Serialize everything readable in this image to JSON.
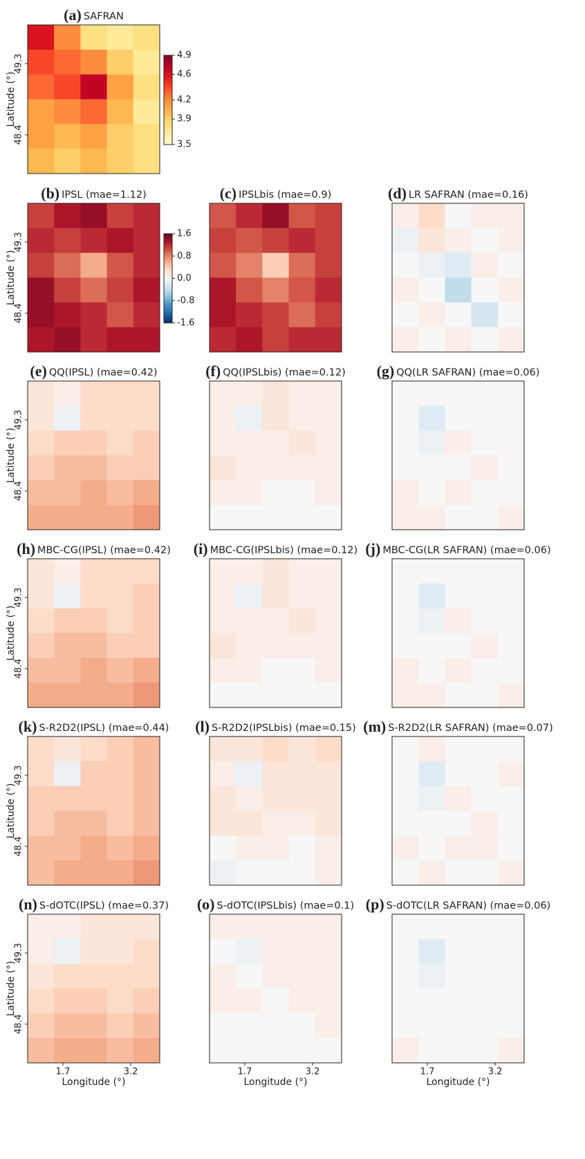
{
  "chart_data": [
    {
      "type": "heatmap",
      "label": "(a)",
      "title": "SAFRAN",
      "ylabel": "Latitude (°)",
      "xlim": [
        0.92,
        3.84
      ],
      "ylim": [
        47.91,
        49.79
      ],
      "yticks": [
        49.3,
        48.4
      ],
      "zlim": [
        3.5,
        4.9
      ],
      "colormap": [
        "#ffffcc",
        "#ffeda0",
        "#fed976",
        "#feb24c",
        "#fd8d3c",
        "#fc4e2a",
        "#e31a1c",
        "#bd0026",
        "#800026"
      ],
      "colorbar": {
        "ticks": [
          4.9,
          4.6,
          4.2,
          3.9,
          3.5
        ]
      },
      "z": [
        [
          4.6,
          4.2,
          3.8,
          3.7,
          3.8
        ],
        [
          4.4,
          4.3,
          4.2,
          3.9,
          3.7
        ],
        [
          4.3,
          4.4,
          4.7,
          4.1,
          3.8
        ],
        [
          4.1,
          4.2,
          4.3,
          4.0,
          3.7
        ],
        [
          4.1,
          4.0,
          4.1,
          3.9,
          3.8
        ],
        [
          4.0,
          3.9,
          4.0,
          3.9,
          3.8
        ]
      ]
    },
    {
      "type": "heatmap",
      "label": "(b)",
      "title": "IPSL (mae=1.12)",
      "ylabel": "Latitude (°)",
      "xlim": [
        0.92,
        3.84
      ],
      "ylim": [
        47.91,
        49.79
      ],
      "yticks": [
        49.3,
        48.4
      ],
      "zlim": [
        -1.6,
        1.6
      ],
      "colormap": [
        "#053061",
        "#2166ac",
        "#4393c3",
        "#92c5de",
        "#d1e5f0",
        "#f7f7f7",
        "#fddbc7",
        "#f4a582",
        "#d6604d",
        "#b2182b",
        "#67001f"
      ],
      "colorbar": {
        "ticks": [
          1.6,
          0.8,
          {
            "value": 0,
            "label": "0.0"
          },
          -0.8,
          -1.6
        ]
      },
      "z": [
        [
          1.1,
          1.3,
          1.4,
          1.1,
          1.2
        ],
        [
          1.2,
          1.1,
          1.2,
          1.3,
          1.2
        ],
        [
          1.1,
          0.9,
          0.6,
          1.0,
          1.2
        ],
        [
          1.4,
          1.1,
          0.9,
          1.1,
          1.3
        ],
        [
          1.4,
          1.3,
          1.2,
          1.0,
          1.2
        ],
        [
          1.3,
          1.4,
          1.2,
          1.3,
          1.3
        ]
      ]
    },
    {
      "type": "heatmap",
      "label": "(c)",
      "title": "IPSLbis (mae=0.9)",
      "xlim": [
        0.92,
        3.84
      ],
      "ylim": [
        47.91,
        49.79
      ],
      "zlim": [
        -1.6,
        1.6
      ],
      "colormap": [
        "#053061",
        "#2166ac",
        "#4393c3",
        "#92c5de",
        "#d1e5f0",
        "#f7f7f7",
        "#fddbc7",
        "#f4a582",
        "#d6604d",
        "#b2182b",
        "#67001f"
      ],
      "z": [
        [
          1.0,
          1.2,
          1.4,
          1.0,
          1.1
        ],
        [
          1.1,
          1.0,
          1.1,
          1.2,
          1.1
        ],
        [
          1.0,
          0.8,
          0.4,
          0.9,
          1.1
        ],
        [
          1.3,
          1.0,
          0.8,
          1.0,
          1.2
        ],
        [
          1.3,
          1.2,
          1.1,
          0.9,
          1.1
        ],
        [
          1.2,
          1.3,
          1.1,
          1.2,
          1.2
        ]
      ]
    },
    {
      "type": "heatmap",
      "label": "(d)",
      "title": "LR SAFRAN (mae=0.16)",
      "xlim": [
        0.92,
        3.84
      ],
      "ylim": [
        47.91,
        49.79
      ],
      "zlim": [
        -1.6,
        1.6
      ],
      "colormap": [
        "#053061",
        "#2166ac",
        "#4393c3",
        "#92c5de",
        "#d1e5f0",
        "#f7f7f7",
        "#fddbc7",
        "#f4a582",
        "#d6604d",
        "#b2182b",
        "#67001f"
      ],
      "z": [
        [
          0.1,
          0.3,
          0.0,
          0.1,
          0.1
        ],
        [
          -0.1,
          0.2,
          0.1,
          0.0,
          0.1
        ],
        [
          0.0,
          -0.1,
          -0.2,
          0.1,
          0.0
        ],
        [
          0.1,
          0.0,
          -0.4,
          0.0,
          0.1
        ],
        [
          0.0,
          0.1,
          0.0,
          -0.3,
          0.0
        ],
        [
          0.1,
          0.0,
          0.1,
          0.0,
          0.1
        ]
      ]
    },
    {
      "type": "heatmap",
      "label": "(e)",
      "title": "QQ(IPSL) (mae=0.42)",
      "ylabel": "Latitude (°)",
      "xlim": [
        0.92,
        3.84
      ],
      "ylim": [
        47.91,
        49.79
      ],
      "yticks": [
        49.3,
        48.4
      ],
      "zlim": [
        -1.6,
        1.6
      ],
      "colormap": [
        "#053061",
        "#2166ac",
        "#4393c3",
        "#92c5de",
        "#d1e5f0",
        "#f7f7f7",
        "#fddbc7",
        "#f4a582",
        "#d6604d",
        "#b2182b",
        "#67001f"
      ],
      "z": [
        [
          0.2,
          0.1,
          0.3,
          0.3,
          0.3
        ],
        [
          0.2,
          -0.1,
          0.3,
          0.3,
          0.3
        ],
        [
          0.3,
          0.4,
          0.4,
          0.3,
          0.4
        ],
        [
          0.4,
          0.5,
          0.5,
          0.4,
          0.4
        ],
        [
          0.5,
          0.5,
          0.6,
          0.5,
          0.6
        ],
        [
          0.6,
          0.6,
          0.6,
          0.6,
          0.7
        ]
      ]
    },
    {
      "type": "heatmap",
      "label": "(f)",
      "title": "QQ(IPSLbis) (mae=0.12)",
      "xlim": [
        0.92,
        3.84
      ],
      "ylim": [
        47.91,
        49.79
      ],
      "zlim": [
        -1.6,
        1.6
      ],
      "colormap": [
        "#053061",
        "#2166ac",
        "#4393c3",
        "#92c5de",
        "#d1e5f0",
        "#f7f7f7",
        "#fddbc7",
        "#f4a582",
        "#d6604d",
        "#b2182b",
        "#67001f"
      ],
      "z": [
        [
          0.1,
          0.1,
          0.2,
          0.1,
          0.1
        ],
        [
          0.1,
          -0.1,
          0.2,
          0.1,
          0.1
        ],
        [
          0.1,
          0.1,
          0.1,
          0.2,
          0.1
        ],
        [
          0.2,
          0.1,
          0.1,
          0.1,
          0.1
        ],
        [
          0.1,
          0.1,
          0.0,
          0.0,
          0.1
        ],
        [
          0.0,
          0.0,
          0.0,
          0.0,
          0.0
        ]
      ]
    },
    {
      "type": "heatmap",
      "label": "(g)",
      "title": "QQ(LR SAFRAN) (mae=0.06)",
      "xlim": [
        0.92,
        3.84
      ],
      "ylim": [
        47.91,
        49.79
      ],
      "zlim": [
        -1.6,
        1.6
      ],
      "colormap": [
        "#053061",
        "#2166ac",
        "#4393c3",
        "#92c5de",
        "#d1e5f0",
        "#f7f7f7",
        "#fddbc7",
        "#f4a582",
        "#d6604d",
        "#b2182b",
        "#67001f"
      ],
      "z": [
        [
          0.0,
          0.0,
          0.0,
          0.0,
          0.0
        ],
        [
          0.0,
          -0.2,
          0.0,
          0.0,
          0.0
        ],
        [
          0.0,
          -0.1,
          0.1,
          0.0,
          0.0
        ],
        [
          0.0,
          0.0,
          0.0,
          0.1,
          0.0
        ],
        [
          0.1,
          0.0,
          0.1,
          0.0,
          0.0
        ],
        [
          0.1,
          0.1,
          0.0,
          0.0,
          0.1
        ]
      ]
    },
    {
      "type": "heatmap",
      "label": "(h)",
      "title": "MBC-CG(IPSL) (mae=0.42)",
      "ylabel": "Latitude (°)",
      "xlim": [
        0.92,
        3.84
      ],
      "ylim": [
        47.91,
        49.79
      ],
      "yticks": [
        49.3,
        48.4
      ],
      "zlim": [
        -1.6,
        1.6
      ],
      "colormap": [
        "#053061",
        "#2166ac",
        "#4393c3",
        "#92c5de",
        "#d1e5f0",
        "#f7f7f7",
        "#fddbc7",
        "#f4a582",
        "#d6604d",
        "#b2182b",
        "#67001f"
      ],
      "z": [
        [
          0.2,
          0.1,
          0.3,
          0.3,
          0.3
        ],
        [
          0.2,
          -0.1,
          0.3,
          0.3,
          0.4
        ],
        [
          0.3,
          0.4,
          0.4,
          0.3,
          0.4
        ],
        [
          0.4,
          0.5,
          0.5,
          0.4,
          0.4
        ],
        [
          0.5,
          0.5,
          0.6,
          0.5,
          0.6
        ],
        [
          0.6,
          0.6,
          0.6,
          0.6,
          0.7
        ]
      ]
    },
    {
      "type": "heatmap",
      "label": "(i)",
      "title": "MBC-CG(IPSLbis) (mae=0.12)",
      "xlim": [
        0.92,
        3.84
      ],
      "ylim": [
        47.91,
        49.79
      ],
      "zlim": [
        -1.6,
        1.6
      ],
      "colormap": [
        "#053061",
        "#2166ac",
        "#4393c3",
        "#92c5de",
        "#d1e5f0",
        "#f7f7f7",
        "#fddbc7",
        "#f4a582",
        "#d6604d",
        "#b2182b",
        "#67001f"
      ],
      "z": [
        [
          0.1,
          0.1,
          0.2,
          0.1,
          0.1
        ],
        [
          0.1,
          -0.1,
          0.2,
          0.1,
          0.1
        ],
        [
          0.1,
          0.1,
          0.1,
          0.2,
          0.1
        ],
        [
          0.2,
          0.1,
          0.1,
          0.1,
          0.1
        ],
        [
          0.1,
          0.1,
          0.0,
          0.0,
          0.1
        ],
        [
          0.0,
          0.0,
          0.0,
          0.0,
          0.0
        ]
      ]
    },
    {
      "type": "heatmap",
      "label": "(j)",
      "title": "MBC-CG(LR SAFRAN) (mae=0.06)",
      "xlim": [
        0.92,
        3.84
      ],
      "ylim": [
        47.91,
        49.79
      ],
      "zlim": [
        -1.6,
        1.6
      ],
      "colormap": [
        "#053061",
        "#2166ac",
        "#4393c3",
        "#92c5de",
        "#d1e5f0",
        "#f7f7f7",
        "#fddbc7",
        "#f4a582",
        "#d6604d",
        "#b2182b",
        "#67001f"
      ],
      "z": [
        [
          0.0,
          0.0,
          0.0,
          0.0,
          0.0
        ],
        [
          0.0,
          -0.2,
          0.0,
          0.0,
          0.0
        ],
        [
          0.0,
          -0.1,
          0.1,
          0.0,
          0.0
        ],
        [
          0.0,
          0.0,
          0.0,
          0.1,
          0.0
        ],
        [
          0.1,
          0.0,
          0.1,
          0.0,
          0.0
        ],
        [
          0.1,
          0.1,
          0.0,
          0.0,
          0.1
        ]
      ]
    },
    {
      "type": "heatmap",
      "label": "(k)",
      "title": "S-R2D2(IPSL) (mae=0.44)",
      "ylabel": "Latitude (°)",
      "xlim": [
        0.92,
        3.84
      ],
      "ylim": [
        47.91,
        49.79
      ],
      "yticks": [
        49.3,
        48.4
      ],
      "zlim": [
        -1.6,
        1.6
      ],
      "colormap": [
        "#053061",
        "#2166ac",
        "#4393c3",
        "#92c5de",
        "#d1e5f0",
        "#f7f7f7",
        "#fddbc7",
        "#f4a582",
        "#d6604d",
        "#b2182b",
        "#67001f"
      ],
      "z": [
        [
          0.3,
          0.2,
          0.3,
          0.4,
          0.5
        ],
        [
          0.3,
          -0.1,
          0.4,
          0.4,
          0.5
        ],
        [
          0.4,
          0.4,
          0.4,
          0.4,
          0.5
        ],
        [
          0.4,
          0.5,
          0.5,
          0.4,
          0.5
        ],
        [
          0.5,
          0.5,
          0.6,
          0.5,
          0.6
        ],
        [
          0.5,
          0.6,
          0.6,
          0.6,
          0.7
        ]
      ]
    },
    {
      "type": "heatmap",
      "label": "(l)",
      "title": "S-R2D2(IPSLbis) (mae=0.15)",
      "xlim": [
        0.92,
        3.84
      ],
      "ylim": [
        47.91,
        49.79
      ],
      "zlim": [
        -1.6,
        1.6
      ],
      "colormap": [
        "#053061",
        "#2166ac",
        "#4393c3",
        "#92c5de",
        "#d1e5f0",
        "#f7f7f7",
        "#fddbc7",
        "#f4a582",
        "#d6604d",
        "#b2182b",
        "#67001f"
      ],
      "z": [
        [
          0.2,
          0.2,
          0.3,
          0.2,
          0.3
        ],
        [
          0.1,
          -0.1,
          0.2,
          0.2,
          0.2
        ],
        [
          0.2,
          0.1,
          0.2,
          0.2,
          0.2
        ],
        [
          0.2,
          0.2,
          0.1,
          0.1,
          0.2
        ],
        [
          0.0,
          0.1,
          0.1,
          0.0,
          0.1
        ],
        [
          -0.1,
          0.0,
          0.0,
          0.0,
          0.1
        ]
      ]
    },
    {
      "type": "heatmap",
      "label": "(m)",
      "title": "S-R2D2(LR SAFRAN) (mae=0.07)",
      "xlim": [
        0.92,
        3.84
      ],
      "ylim": [
        47.91,
        49.79
      ],
      "zlim": [
        -1.6,
        1.6
      ],
      "colormap": [
        "#053061",
        "#2166ac",
        "#4393c3",
        "#92c5de",
        "#d1e5f0",
        "#f7f7f7",
        "#fddbc7",
        "#f4a582",
        "#d6604d",
        "#b2182b",
        "#67001f"
      ],
      "z": [
        [
          0.0,
          0.1,
          0.0,
          0.0,
          0.0
        ],
        [
          0.0,
          -0.2,
          0.0,
          0.0,
          0.1
        ],
        [
          0.0,
          -0.1,
          0.1,
          0.0,
          0.0
        ],
        [
          0.0,
          0.0,
          0.0,
          0.1,
          0.0
        ],
        [
          0.1,
          0.0,
          0.1,
          0.1,
          0.0
        ],
        [
          0.0,
          0.1,
          0.0,
          0.0,
          0.1
        ]
      ]
    },
    {
      "type": "heatmap",
      "label": "(n)",
      "title": "S-dOTC(IPSL) (mae=0.37)",
      "ylabel": "Latitude (°)",
      "xlabel": "Longitude (°)",
      "xlim": [
        0.92,
        3.84
      ],
      "ylim": [
        47.91,
        49.79
      ],
      "xticks": [
        1.7,
        3.2
      ],
      "yticks": [
        49.3,
        48.4
      ],
      "zlim": [
        -1.6,
        1.6
      ],
      "colormap": [
        "#053061",
        "#2166ac",
        "#4393c3",
        "#92c5de",
        "#d1e5f0",
        "#f7f7f7",
        "#fddbc7",
        "#f4a582",
        "#d6604d",
        "#b2182b",
        "#67001f"
      ],
      "z": [
        [
          0.1,
          0.1,
          0.2,
          0.2,
          0.2
        ],
        [
          0.1,
          -0.1,
          0.2,
          0.2,
          0.3
        ],
        [
          0.2,
          0.3,
          0.3,
          0.3,
          0.3
        ],
        [
          0.3,
          0.4,
          0.4,
          0.3,
          0.4
        ],
        [
          0.4,
          0.5,
          0.5,
          0.4,
          0.5
        ],
        [
          0.5,
          0.6,
          0.6,
          0.5,
          0.6
        ]
      ]
    },
    {
      "type": "heatmap",
      "label": "(o)",
      "title": "S-dOTC(IPSLbis) (mae=0.1)",
      "xlabel": "Longitude (°)",
      "xlim": [
        0.92,
        3.84
      ],
      "ylim": [
        47.91,
        49.79
      ],
      "xticks": [
        1.7,
        3.2
      ],
      "zlim": [
        -1.6,
        1.6
      ],
      "colormap": [
        "#053061",
        "#2166ac",
        "#4393c3",
        "#92c5de",
        "#d1e5f0",
        "#f7f7f7",
        "#fddbc7",
        "#f4a582",
        "#d6604d",
        "#b2182b",
        "#67001f"
      ],
      "z": [
        [
          0.1,
          0.1,
          0.1,
          0.1,
          0.1
        ],
        [
          0.0,
          -0.1,
          0.1,
          0.1,
          0.1
        ],
        [
          0.1,
          0.0,
          0.1,
          0.1,
          0.1
        ],
        [
          0.1,
          0.1,
          0.0,
          0.1,
          0.1
        ],
        [
          0.0,
          0.0,
          0.0,
          0.0,
          0.1
        ],
        [
          0.0,
          0.0,
          0.0,
          0.0,
          0.0
        ]
      ]
    },
    {
      "type": "heatmap",
      "label": "(p)",
      "title": "S-dOTC(LR SAFRAN) (mae=0.06)",
      "xlabel": "Longitude (°)",
      "xlim": [
        0.92,
        3.84
      ],
      "ylim": [
        47.91,
        49.79
      ],
      "xticks": [
        1.7,
        3.2
      ],
      "zlim": [
        -1.6,
        1.6
      ],
      "colormap": [
        "#053061",
        "#2166ac",
        "#4393c3",
        "#92c5de",
        "#d1e5f0",
        "#f7f7f7",
        "#fddbc7",
        "#f4a582",
        "#d6604d",
        "#b2182b",
        "#67001f"
      ],
      "z": [
        [
          0.0,
          0.0,
          0.0,
          0.0,
          0.0
        ],
        [
          0.0,
          -0.2,
          0.0,
          0.0,
          0.0
        ],
        [
          0.0,
          -0.1,
          0.0,
          0.0,
          0.0
        ],
        [
          0.0,
          0.0,
          0.0,
          0.0,
          0.0
        ],
        [
          0.0,
          0.0,
          0.0,
          0.0,
          0.0
        ],
        [
          0.1,
          0.0,
          0.0,
          0.0,
          0.1
        ]
      ]
    }
  ]
}
